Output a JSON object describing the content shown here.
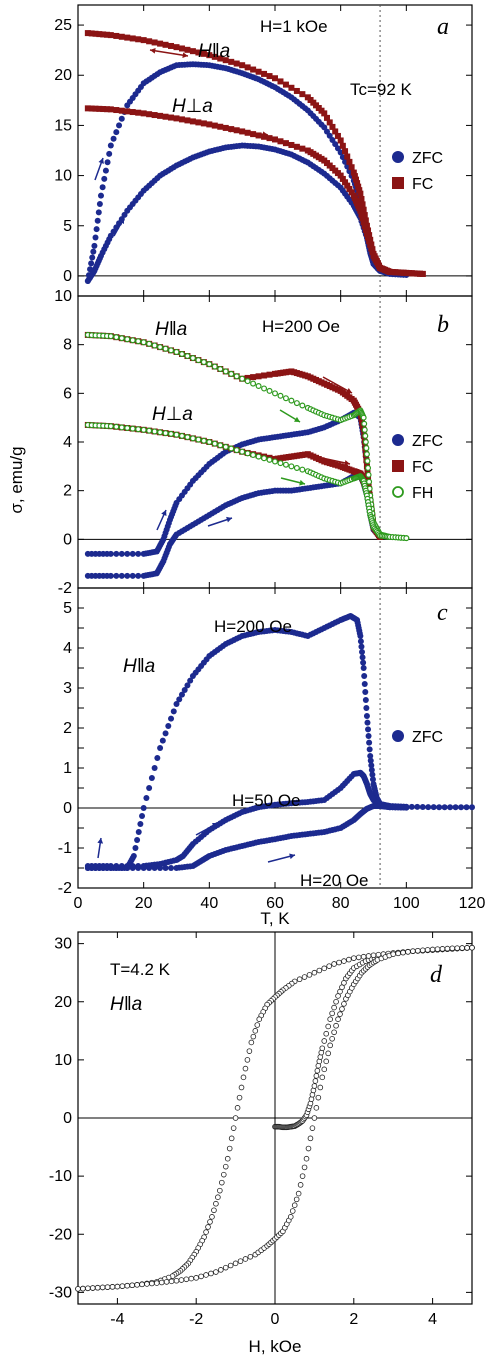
{
  "colors": {
    "zfc": "#1c2a8f",
    "fc": "#8b1414",
    "fh": "#2e9a1e",
    "fh_stroke": "#2e9a1e",
    "loop": "#222222"
  },
  "chart_data": [
    {
      "panel": "a",
      "type": "scatter",
      "xlim": [
        0,
        120
      ],
      "ylim": [
        -2,
        27
      ],
      "yticks": [
        "0",
        "5",
        "10",
        "15",
        "20",
        "25"
      ],
      "xticks": [
        "",
        "",
        "",
        "",
        "",
        "",
        ""
      ],
      "legend": [
        "ZFC",
        "FC"
      ],
      "annotations": {
        "field": "H=1 kOe",
        "tc": "Tc=92 K",
        "para": "H‖a",
        "perp": "H⊥a"
      },
      "tc_line": 92,
      "series": [
        {
          "name": "ZFC",
          "orientation": "H‖a",
          "x": [
            3,
            5,
            7,
            10,
            15,
            20,
            25,
            30,
            35,
            40,
            45,
            50,
            55,
            60,
            65,
            70,
            75,
            80,
            84,
            86,
            88,
            89,
            90,
            92,
            95,
            100
          ],
          "y": [
            -0.5,
            3,
            8,
            13,
            17,
            19.2,
            20.3,
            21,
            21.1,
            21,
            20.7,
            20.2,
            19.6,
            18.8,
            17.8,
            16.5,
            14.8,
            12.3,
            9.5,
            7.5,
            4.5,
            2.5,
            1.2,
            0.5,
            0.2,
            0.1
          ]
        },
        {
          "name": "ZFC",
          "orientation": "H⊥a",
          "x": [
            3,
            5,
            7,
            10,
            15,
            20,
            25,
            30,
            35,
            40,
            45,
            50,
            55,
            60,
            65,
            70,
            75,
            80,
            84,
            86,
            88,
            89,
            90,
            92,
            95,
            100
          ],
          "y": [
            -0.5,
            0.5,
            2,
            4,
            6.5,
            8.5,
            10,
            11,
            11.8,
            12.4,
            12.8,
            13,
            12.9,
            12.6,
            12.1,
            11.3,
            10.2,
            8.8,
            7,
            5.8,
            3.8,
            2.3,
            1.2,
            0.5,
            0.2,
            0.1
          ]
        },
        {
          "name": "FC",
          "orientation": "H‖a",
          "x": [
            3,
            10,
            20,
            30,
            40,
            50,
            60,
            70,
            75,
            80,
            84,
            86,
            88,
            90,
            92,
            95,
            100,
            105
          ],
          "y": [
            24.2,
            24,
            23.5,
            22.8,
            22,
            21,
            19.7,
            17.8,
            16.2,
            13.5,
            10.3,
            8.2,
            5,
            2.2,
            0.8,
            0.4,
            0.3,
            0.2
          ]
        },
        {
          "name": "FC",
          "orientation": "H⊥a",
          "x": [
            3,
            10,
            20,
            30,
            40,
            50,
            60,
            70,
            75,
            80,
            84,
            86,
            88,
            90,
            92,
            95,
            100,
            105
          ],
          "y": [
            16.7,
            16.6,
            16.2,
            15.7,
            15.1,
            14.4,
            13.6,
            12.5,
            11.5,
            10,
            8,
            6.5,
            4.2,
            2,
            0.8,
            0.4,
            0.3,
            0.2
          ]
        }
      ]
    },
    {
      "panel": "b",
      "type": "scatter",
      "xlim": [
        0,
        120
      ],
      "ylim": [
        -2,
        10
      ],
      "yticks": [
        "-2",
        "0",
        "2",
        "4",
        "6",
        "8",
        "10"
      ],
      "xticks": [
        "",
        "",
        "",
        "",
        "",
        "",
        ""
      ],
      "legend": [
        "ZFC",
        "FC",
        "FH"
      ],
      "annotations": {
        "field": "H=200 Oe",
        "para": "H‖a",
        "perp": "H⊥a"
      },
      "tc_line": 92,
      "series": [
        {
          "name": "ZFC",
          "orientation": "H‖a",
          "x": [
            3,
            10,
            20,
            24,
            26,
            28,
            30,
            35,
            40,
            45,
            50,
            55,
            60,
            65,
            70,
            75,
            80,
            84,
            86,
            87,
            88,
            89,
            90,
            92
          ],
          "y": [
            -0.6,
            -0.6,
            -0.6,
            -0.5,
            0,
            0.8,
            1.5,
            2.4,
            3.1,
            3.6,
            3.9,
            4.1,
            4.2,
            4.3,
            4.4,
            4.6,
            4.9,
            5.2,
            5,
            4.2,
            3,
            1.5,
            0.6,
            0.1
          ]
        },
        {
          "name": "ZFC",
          "orientation": "H⊥a",
          "x": [
            3,
            10,
            20,
            24,
            26,
            28,
            30,
            35,
            40,
            45,
            50,
            55,
            60,
            65,
            70,
            75,
            80,
            84,
            86,
            87,
            88,
            89,
            90,
            92
          ],
          "y": [
            -1.5,
            -1.5,
            -1.5,
            -1.4,
            -0.9,
            -0.2,
            0.2,
            0.6,
            1,
            1.4,
            1.7,
            1.9,
            2,
            2,
            2.1,
            2.2,
            2.3,
            2.6,
            2.6,
            2.3,
            1.8,
            1.0,
            0.4,
            0.1
          ]
        },
        {
          "name": "FC",
          "orientation": "H‖a",
          "x": [
            3,
            10,
            20,
            30,
            40,
            50,
            60,
            65,
            70,
            75,
            80,
            84,
            86,
            87,
            88,
            89,
            90,
            92
          ],
          "y": [
            8.4,
            8.35,
            8.1,
            7.7,
            7.2,
            6.6,
            6.8,
            6.9,
            6.7,
            6.4,
            6.1,
            5.7,
            5.2,
            4.5,
            3,
            1.6,
            0.6,
            0.1
          ]
        },
        {
          "name": "FC",
          "orientation": "H⊥a",
          "x": [
            3,
            10,
            20,
            30,
            40,
            50,
            60,
            65,
            70,
            75,
            80,
            84,
            86,
            87,
            88,
            89,
            90,
            92
          ],
          "y": [
            4.7,
            4.65,
            4.5,
            4.3,
            4,
            3.6,
            3.3,
            3.4,
            3.5,
            3.2,
            3,
            2.8,
            2.7,
            2.4,
            2,
            1.2,
            0.5,
            0.1
          ]
        },
        {
          "name": "FH",
          "orientation": "H‖a",
          "x": [
            3,
            10,
            20,
            30,
            40,
            50,
            60,
            70,
            75,
            80,
            84,
            86,
            87,
            88,
            89,
            90,
            92,
            95,
            100
          ],
          "y": [
            8.4,
            8.35,
            8.1,
            7.7,
            7.2,
            6.6,
            6,
            5.4,
            5.1,
            4.9,
            5.1,
            5.3,
            5.0,
            3.5,
            1.8,
            0.7,
            0.2,
            0.1,
            0.05
          ]
        },
        {
          "name": "FH",
          "orientation": "H⊥a",
          "x": [
            3,
            10,
            20,
            30,
            40,
            50,
            60,
            70,
            75,
            80,
            84,
            86,
            87,
            88,
            89,
            90,
            92,
            95,
            100
          ],
          "y": [
            4.7,
            4.65,
            4.5,
            4.3,
            4,
            3.6,
            3.2,
            2.8,
            2.5,
            2.3,
            2.5,
            2.6,
            2.4,
            1.8,
            1.0,
            0.5,
            0.15,
            0.1,
            0.05
          ]
        }
      ]
    },
    {
      "panel": "c",
      "type": "scatter",
      "xlim": [
        0,
        120
      ],
      "ylim": [
        -2,
        5.5
      ],
      "yticks": [
        "-2",
        "-1.5",
        "-1",
        "-0.5",
        "0",
        "0.5",
        "1",
        "1.5",
        "2",
        "2.5",
        "3",
        "3.5",
        "4",
        "4.5",
        "5"
      ],
      "xticks": [
        "0",
        "20",
        "40",
        "60",
        "80",
        "100",
        "120"
      ],
      "xlabel": "T, K",
      "legend": [
        "ZFC"
      ],
      "annotations": {
        "para": "H‖a",
        "f200": "H=200 Oe",
        "f50": "H=50 Oe",
        "f20": "H=20 Oe"
      },
      "tc_line": 92,
      "series": [
        {
          "name": "ZFC",
          "field": "H=200 Oe",
          "x": [
            3,
            10,
            15,
            17,
            20,
            25,
            30,
            35,
            40,
            45,
            50,
            55,
            60,
            65,
            70,
            75,
            80,
            83,
            85,
            86,
            87,
            88,
            89,
            90,
            91,
            92,
            95,
            100,
            110,
            120
          ],
          "y": [
            -1.5,
            -1.5,
            -1.5,
            -1.2,
            0,
            1.5,
            2.6,
            3.3,
            3.8,
            4.1,
            4.3,
            4.4,
            4.45,
            4.4,
            4.3,
            4.5,
            4.7,
            4.8,
            4.7,
            4.3,
            3.5,
            2.3,
            1.3,
            0.6,
            0.25,
            0.1,
            0.05,
            0.03,
            0.02,
            0.02
          ]
        },
        {
          "name": "ZFC",
          "field": "H=50 Oe",
          "x": [
            3,
            10,
            20,
            25,
            30,
            32,
            35,
            40,
            45,
            50,
            55,
            60,
            65,
            70,
            75,
            80,
            84,
            86,
            87,
            88,
            89,
            90,
            92,
            95,
            100
          ],
          "y": [
            -1.45,
            -1.45,
            -1.45,
            -1.4,
            -1.3,
            -1.2,
            -0.9,
            -0.55,
            -0.3,
            -0.1,
            0.02,
            0.08,
            0.12,
            0.15,
            0.2,
            0.5,
            0.85,
            0.88,
            0.8,
            0.6,
            0.35,
            0.2,
            0.05,
            0.02,
            0.01
          ]
        },
        {
          "name": "ZFC",
          "field": "H=20 Oe",
          "x": [
            3,
            10,
            20,
            30,
            35,
            38,
            40,
            45,
            50,
            55,
            60,
            65,
            70,
            75,
            80,
            84,
            86,
            88,
            90,
            92,
            95,
            100
          ],
          "y": [
            -1.5,
            -1.5,
            -1.5,
            -1.5,
            -1.45,
            -1.3,
            -1.2,
            -1.05,
            -0.95,
            -0.85,
            -0.78,
            -0.7,
            -0.65,
            -0.6,
            -0.5,
            -0.3,
            -0.15,
            -0.02,
            0.05,
            0.05,
            0.02,
            0.01
          ]
        }
      ]
    },
    {
      "panel": "d",
      "type": "scatter",
      "xlim": [
        -5,
        5
      ],
      "ylim": [
        -32,
        32
      ],
      "yticks": [
        "-30",
        "-20",
        "-10",
        "0",
        "10",
        "20",
        "30"
      ],
      "xticks": [
        "-4",
        "-2",
        "0",
        "2",
        "4"
      ],
      "xlabel": "H, kOe",
      "annotations": {
        "temp": "T=4.2 K",
        "para": "H‖a"
      },
      "series": [
        {
          "name": "virgin",
          "x": [
            0,
            0.1,
            0.2,
            0.3,
            0.4,
            0.5,
            0.6,
            0.7,
            0.8,
            0.9,
            1.0,
            1.1,
            1.2,
            1.4,
            1.6,
            1.8,
            2.0,
            2.3,
            2.6,
            3.0,
            3.5,
            4.0,
            4.5,
            5.0
          ],
          "y": [
            -1.5,
            -1.5,
            -1.6,
            -1.6,
            -1.5,
            -1.4,
            -1.0,
            -0.5,
            0.5,
            2.5,
            5.5,
            9,
            12,
            17,
            21,
            24,
            25.8,
            27,
            27.7,
            28.3,
            28.7,
            28.9,
            29.1,
            29.3
          ]
        },
        {
          "name": "descending",
          "x": [
            5,
            4.5,
            4,
            3.5,
            3,
            2.5,
            2,
            1.5,
            1,
            0.5,
            0.2,
            0,
            -0.2,
            -0.4,
            -0.6,
            -0.8,
            -1,
            -1.2,
            -1.4,
            -1.6,
            -1.8,
            -2,
            -2.2,
            -2.4,
            -2.6,
            -3,
            -3.5,
            -4,
            -4.5,
            -5
          ],
          "y": [
            29.3,
            29.1,
            28.9,
            28.7,
            28.4,
            28,
            27.5,
            26.5,
            25,
            23.5,
            22,
            20.8,
            19.5,
            17,
            13,
            7,
            0,
            -7,
            -12.5,
            -17,
            -20.5,
            -23,
            -25,
            -26.3,
            -27.2,
            -28.2,
            -28.7,
            -29,
            -29.2,
            -29.4
          ]
        },
        {
          "name": "ascending",
          "x": [
            -5,
            -4.5,
            -4,
            -3.5,
            -3,
            -2.5,
            -2,
            -1.5,
            -1,
            -0.5,
            -0.2,
            0,
            0.2,
            0.4,
            0.6,
            0.8,
            1,
            1.2,
            1.4,
            1.6,
            1.8,
            2,
            2.2,
            2.4,
            2.6,
            3,
            3.5,
            4,
            4.5,
            5
          ],
          "y": [
            -29.4,
            -29.2,
            -29,
            -28.7,
            -28.4,
            -28,
            -27.5,
            -26.5,
            -25,
            -23.5,
            -22,
            -20.8,
            -19.5,
            -17,
            -13,
            -7,
            0,
            7,
            12.5,
            17,
            20.5,
            23,
            25,
            26.3,
            27.2,
            28.2,
            28.7,
            29,
            29.2,
            29.3
          ]
        }
      ]
    }
  ],
  "shared": {
    "ylabel": "σ, emu/g"
  }
}
